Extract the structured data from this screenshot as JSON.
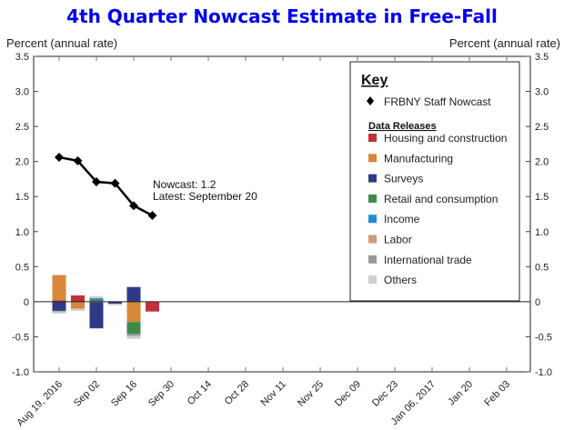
{
  "chart_data": {
    "type": "bar",
    "title": "4th Quarter Nowcast Estimate in Free-Fall",
    "ylabel_left": "Percent (annual rate)",
    "ylabel_right": "Percent (annual rate)",
    "ylim": [
      -1.0,
      3.5
    ],
    "yticks": [
      "-1.0",
      "-0.5",
      "0",
      "0.5",
      "1.0",
      "1.5",
      "2.0",
      "2.5",
      "3.0",
      "3.5"
    ],
    "ytick_values": [
      -1.0,
      -0.5,
      0,
      0.5,
      1.0,
      1.5,
      2.0,
      2.5,
      3.0,
      3.5
    ],
    "xticks": [
      "Aug 19, 2016",
      "Sep 02",
      "Sep 16",
      "Sep 30",
      "Oct 14",
      "Oct 28",
      "Nov 11",
      "Nov 25",
      "Dec 09",
      "Dec 23",
      "Jan 06, 2017",
      "Jan 20",
      "Feb 03"
    ],
    "x_weeks": [
      "Aug 19",
      "Aug 26",
      "Sep 02",
      "Sep 09",
      "Sep 16",
      "Sep 23"
    ],
    "nowcast": {
      "name": "FRBNY Staff Nowcast",
      "values": [
        2.06,
        2.01,
        1.71,
        1.69,
        1.37,
        1.23
      ]
    },
    "categories": [
      "Housing and construction",
      "Manufacturing",
      "Surveys",
      "Retail and consumption",
      "Income",
      "Labor",
      "International trade",
      "Others"
    ],
    "colors": {
      "Housing and construction": "#c0323b",
      "Manufacturing": "#d9873a",
      "Surveys": "#2e3a87",
      "Retail and consumption": "#3e8a48",
      "Income": "#1f8fd0",
      "Labor": "#d09a7a",
      "International trade": "#959c97",
      "Others": "#cfcfcf"
    },
    "series": [
      {
        "name": "Housing and construction",
        "values": [
          0.02,
          0.09,
          0.01,
          0,
          0,
          -0.14
        ]
      },
      {
        "name": "Manufacturing",
        "values": [
          0.36,
          -0.1,
          -0.01,
          0,
          -0.29,
          0
        ]
      },
      {
        "name": "Surveys",
        "values": [
          -0.13,
          0,
          -0.37,
          -0.03,
          0.21,
          0
        ]
      },
      {
        "name": "Retail and consumption",
        "values": [
          0,
          0,
          0.02,
          0,
          -0.17,
          0
        ]
      },
      {
        "name": "Income",
        "values": [
          0,
          0,
          0.02,
          0,
          0,
          0
        ]
      },
      {
        "name": "Labor",
        "values": [
          0,
          0,
          0,
          0,
          0,
          0
        ]
      },
      {
        "name": "International trade",
        "values": [
          -0.01,
          0,
          0,
          0,
          -0.03,
          0
        ]
      },
      {
        "name": "Others",
        "values": [
          -0.03,
          -0.03,
          0.03,
          -0.02,
          -0.04,
          0
        ]
      }
    ],
    "annotation": {
      "line1": "Nowcast:  1.2",
      "line2": "Latest: September 20"
    },
    "legend": {
      "title": "Key",
      "marker_label": "FRBNY Staff Nowcast",
      "subtitle": "Data Releases",
      "placement": "top-right"
    },
    "grid": false
  }
}
